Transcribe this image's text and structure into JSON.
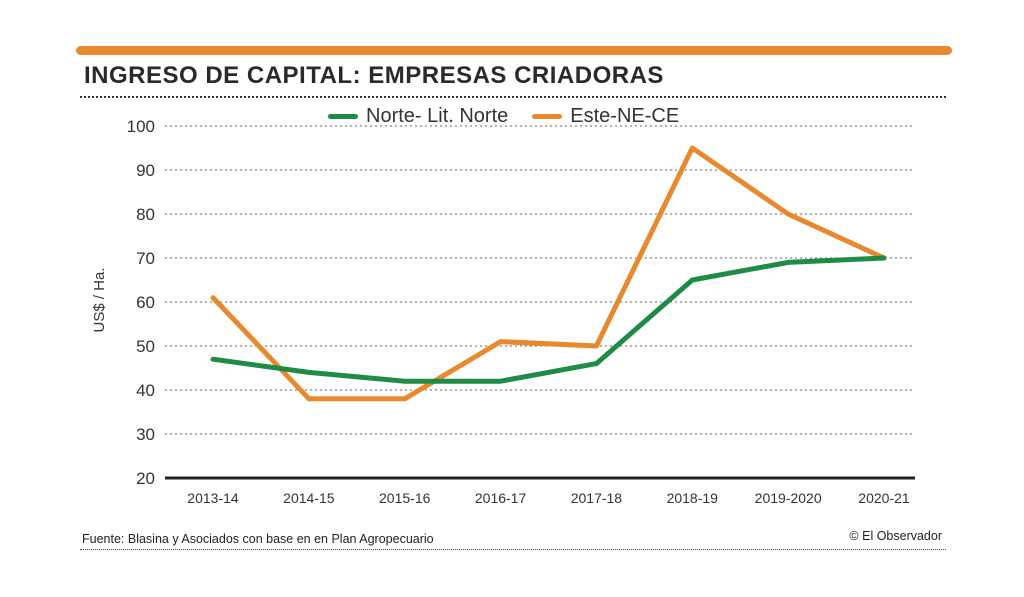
{
  "header": {
    "title": "INGRESO DE CAPITAL: EMPRESAS CRIADORAS",
    "accent_color": "#E8892E"
  },
  "footer": {
    "source": "Fuente: Blasina y Asociados con base en en Plan Agropecuario",
    "credit": "© El Observador"
  },
  "chart_data": {
    "type": "line",
    "title": "INGRESO DE CAPITAL: EMPRESAS CRIADORAS",
    "xlabel": "",
    "ylabel": "US$ / Ha.",
    "ylim": [
      20,
      100
    ],
    "yticks": [
      20,
      30,
      40,
      50,
      60,
      70,
      80,
      90,
      100
    ],
    "grid": true,
    "legend_position": "top-center",
    "categories": [
      "2013-14",
      "2014-15",
      "2015-16",
      "2016-17",
      "2017-18",
      "2018-19",
      "2019-2020",
      "2020-21"
    ],
    "series": [
      {
        "name": "Norte- Lit. Norte",
        "color": "#1E8C45",
        "values": [
          47,
          44,
          42,
          42,
          46,
          65,
          69,
          70
        ]
      },
      {
        "name": "Este-NE-CE",
        "color": "#E8892E",
        "values": [
          61,
          38,
          38,
          51,
          50,
          95,
          80,
          70
        ]
      }
    ]
  }
}
